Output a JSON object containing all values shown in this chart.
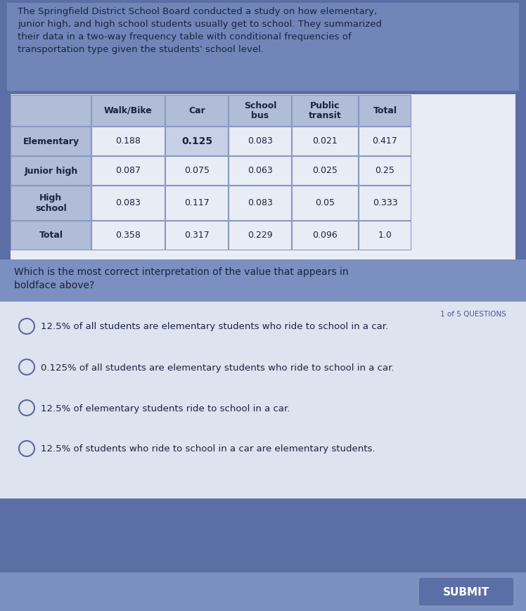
{
  "bg_color": "#5b6fa6",
  "header_bg": "#7b8fc0",
  "table_header_bg": "#b0bcd8",
  "table_cell_bg": "#e8ecf5",
  "table_bold_bg": "#c8d0e8",
  "question_bg": "#ffffff",
  "footer_bg": "#7b8fc0",
  "submit_bg": "#5b6fa6",
  "paragraph_text": "The Springfield District School Board conducted a study on how elementary,\njunior high, and high school students usually get to school. They summarized\ntheir data in a two-way frequency table with conditional frequencies of\ntransportation type given the students' school level.",
  "question_text": "Which is the most correct interpretation of the value that appears in\nboldface above?",
  "question_counter": "1 of 5 QUESTIONS",
  "col_headers": [
    "",
    "Walk/Bike",
    "Car",
    "School\nbus",
    "Public\ntransit",
    "Total"
  ],
  "row_headers": [
    "Elementary",
    "Junior high",
    "High\nschool",
    "Total"
  ],
  "table_data": [
    [
      "0.188",
      "0.125",
      "0.083",
      "0.021",
      "0.417"
    ],
    [
      "0.087",
      "0.075",
      "0.063",
      "0.025",
      "0.25"
    ],
    [
      "0.083",
      "0.117",
      "0.083",
      "0.05",
      "0.333"
    ],
    [
      "0.358",
      "0.317",
      "0.229",
      "0.096",
      "1.0"
    ]
  ],
  "bold_cell": [
    0,
    1
  ],
  "options": [
    "12.5% of all students are elementary students who ride to school in a car.",
    "0.125% of all students are elementary students who ride to school in a car.",
    "12.5% of elementary students ride to school in a car.",
    "12.5% of students who ride to school in a car are elementary students."
  ],
  "submit_text": "SUBMIT",
  "text_dark": "#1a2340",
  "text_medium": "#2a3560",
  "text_light": "#ffffff"
}
